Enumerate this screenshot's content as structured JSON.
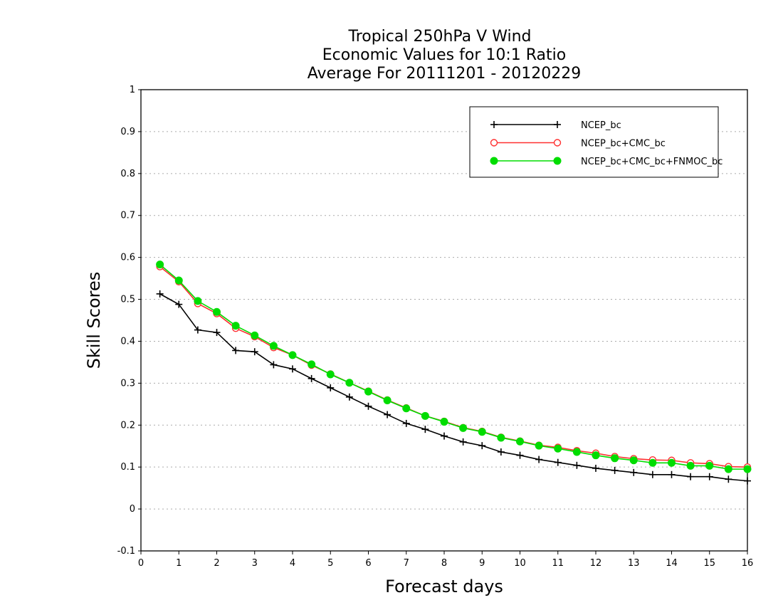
{
  "chart_data": {
    "type": "line",
    "title": [
      "Tropical 250hPa V Wind",
      "Economic Values for 10:1 Ratio",
      "Average For 20111201 - 20120229"
    ],
    "xlabel": "Forecast days",
    "ylabel": "Skill Scores",
    "xlim": [
      0,
      16
    ],
    "ylim": [
      -0.1,
      1
    ],
    "x_ticks": [
      "0",
      "1",
      "2",
      "3",
      "4",
      "5",
      "6",
      "7",
      "8",
      "9",
      "10",
      "11",
      "12",
      "13",
      "14",
      "15",
      "16"
    ],
    "y_ticks": [
      "-0.1",
      "0",
      "0.1",
      "0.2",
      "0.3",
      "0.4",
      "0.5",
      "0.6",
      "0.7",
      "0.8",
      "0.9",
      "1"
    ],
    "grid": "horizontal dotted",
    "legend_position": "top-right",
    "x": [
      0.5,
      1,
      1.5,
      2,
      2.5,
      3,
      3.5,
      4,
      4.5,
      5,
      5.5,
      6,
      6.5,
      7,
      7.5,
      8,
      8.5,
      9,
      9.5,
      10,
      10.5,
      11,
      11.5,
      12,
      12.5,
      13,
      13.5,
      14,
      14.5,
      15,
      15.5,
      16
    ],
    "series": [
      {
        "name": "NCEP_bc",
        "color": "#000000",
        "marker": "plus",
        "values": [
          0.513,
          0.488,
          0.427,
          0.421,
          0.378,
          0.375,
          0.344,
          0.334,
          0.311,
          0.289,
          0.267,
          0.245,
          0.225,
          0.204,
          0.19,
          0.174,
          0.16,
          0.151,
          0.136,
          0.128,
          0.118,
          0.111,
          0.104,
          0.097,
          0.092,
          0.087,
          0.082,
          0.082,
          0.077,
          0.077,
          0.071,
          0.067
        ]
      },
      {
        "name": "NCEP_bc+CMC_bc",
        "color": "#ff3030",
        "marker": "open-circle",
        "values": [
          0.578,
          0.542,
          0.49,
          0.466,
          0.431,
          0.411,
          0.385,
          0.367,
          0.343,
          0.322,
          0.301,
          0.281,
          0.26,
          0.241,
          0.222,
          0.209,
          0.194,
          0.185,
          0.171,
          0.162,
          0.152,
          0.147,
          0.139,
          0.133,
          0.125,
          0.12,
          0.117,
          0.116,
          0.11,
          0.108,
          0.101,
          0.1
        ]
      },
      {
        "name": "NCEP_bc+CMC_bc+FNMOC_bc",
        "color": "#00dd00",
        "marker": "filled-circle",
        "values": [
          0.583,
          0.545,
          0.496,
          0.47,
          0.437,
          0.414,
          0.389,
          0.367,
          0.345,
          0.321,
          0.301,
          0.28,
          0.259,
          0.24,
          0.222,
          0.208,
          0.193,
          0.184,
          0.17,
          0.161,
          0.151,
          0.144,
          0.136,
          0.128,
          0.121,
          0.116,
          0.11,
          0.11,
          0.103,
          0.103,
          0.095,
          0.095
        ]
      }
    ]
  }
}
